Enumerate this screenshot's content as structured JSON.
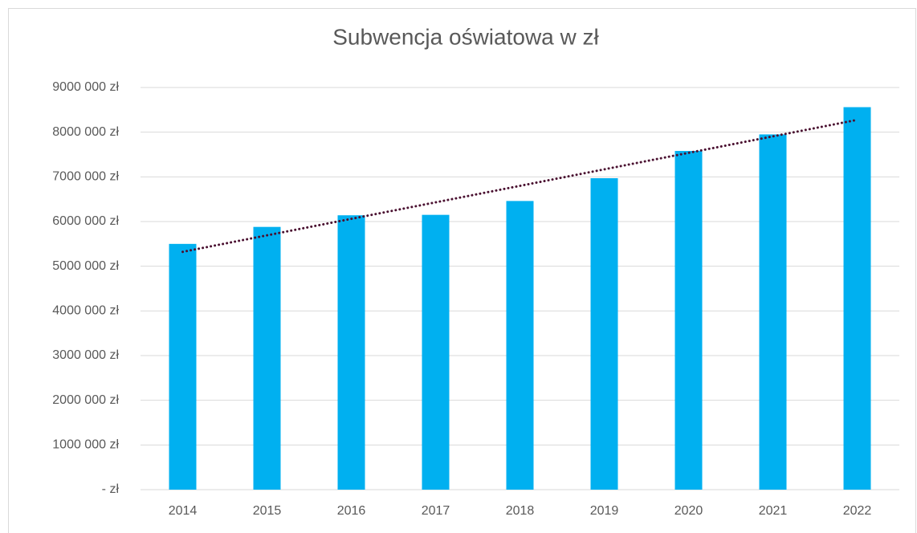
{
  "chart_data": {
    "type": "bar",
    "title": "Subwencja oświatowa w zł",
    "categories": [
      "2014",
      "2015",
      "2016",
      "2017",
      "2018",
      "2019",
      "2020",
      "2021",
      "2022"
    ],
    "values": [
      5500000,
      5880000,
      6140000,
      6150000,
      6460000,
      6970000,
      7580000,
      7950000,
      8560000
    ],
    "color": "#00b0f0",
    "ylim": [
      0,
      9000000
    ],
    "yticks": [
      {
        "value": 0,
        "label": "-   zł"
      },
      {
        "value": 1000000,
        "label": "1000 000 zł"
      },
      {
        "value": 2000000,
        "label": "2000 000 zł"
      },
      {
        "value": 3000000,
        "label": "3000 000 zł"
      },
      {
        "value": 4000000,
        "label": "4000 000 zł"
      },
      {
        "value": 5000000,
        "label": "5000 000 zł"
      },
      {
        "value": 6000000,
        "label": "6000 000 zł"
      },
      {
        "value": 7000000,
        "label": "7000 000 zł"
      },
      {
        "value": 8000000,
        "label": "8000 000 zł"
      },
      {
        "value": 9000000,
        "label": "9000 000 zł"
      }
    ],
    "grid": true,
    "trendline": "linear",
    "trendline_color": "#4a1030"
  }
}
